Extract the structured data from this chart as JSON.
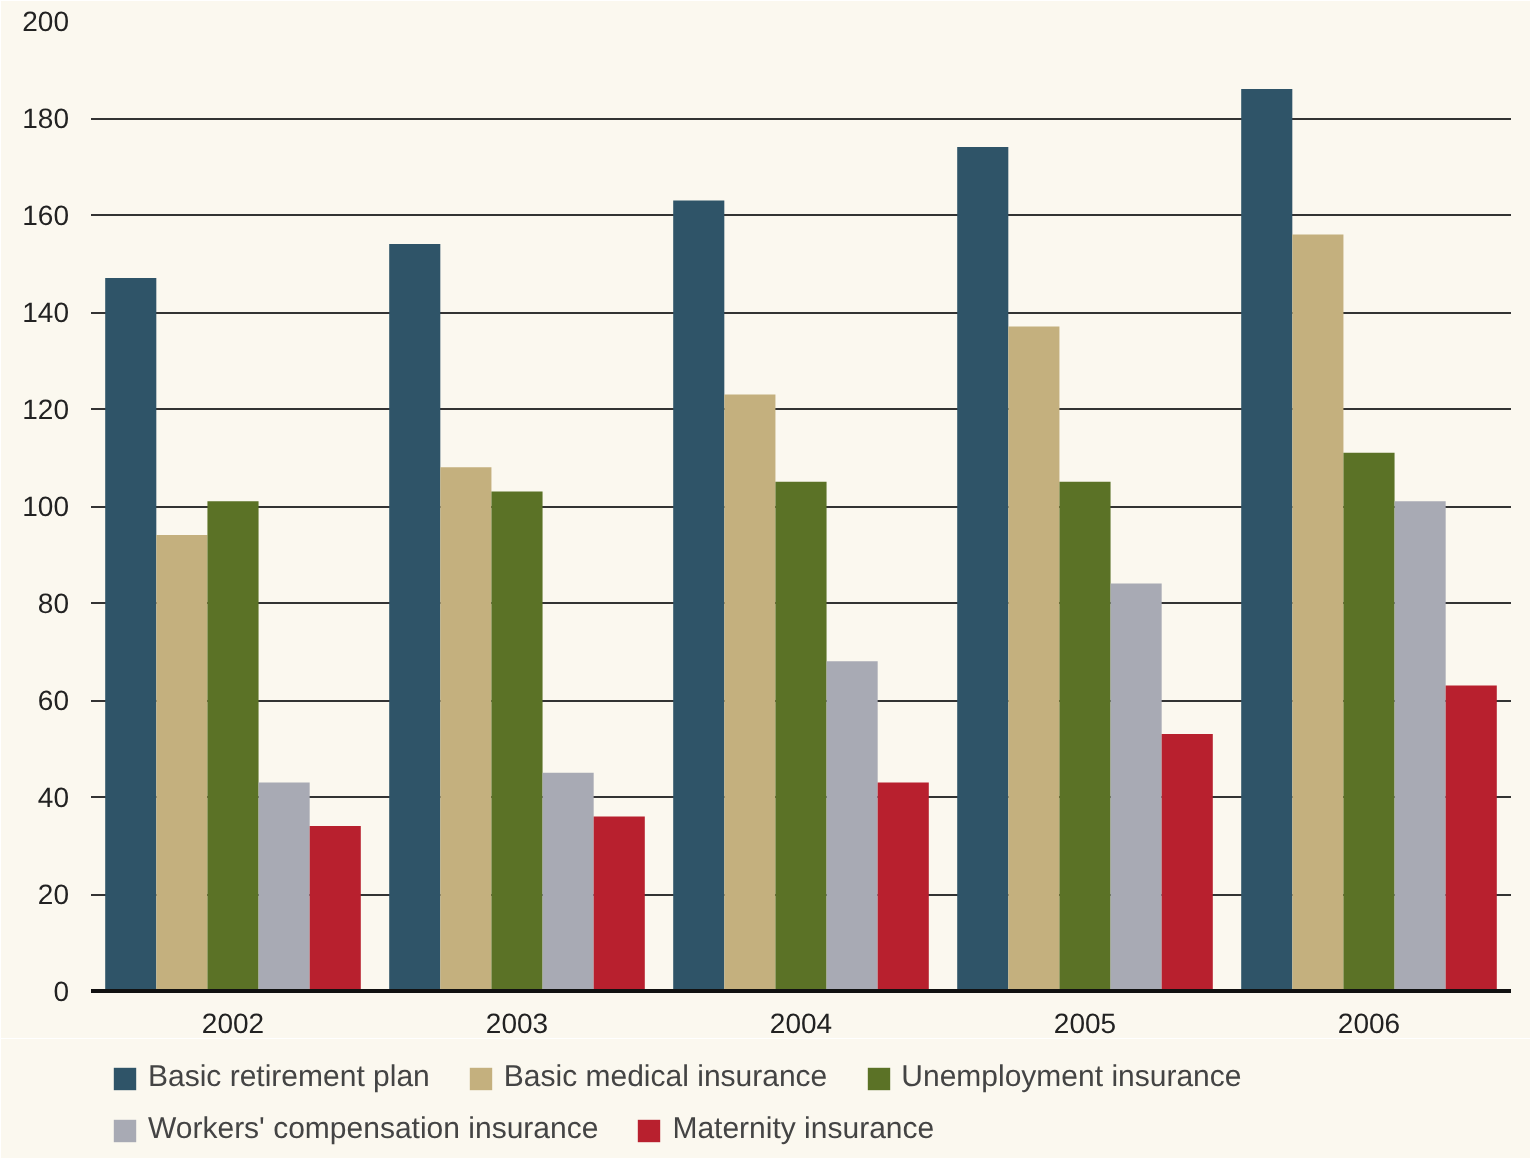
{
  "chart_data": {
    "type": "bar",
    "categories": [
      "2002",
      "2003",
      "2004",
      "2005",
      "2006"
    ],
    "series": [
      {
        "name": "Basic retirement plan",
        "color": "#2f5468",
        "values": [
          147,
          154,
          163,
          174,
          186
        ]
      },
      {
        "name": "Basic medical insurance",
        "color": "#c4b07e",
        "values": [
          94,
          108,
          123,
          137,
          156
        ]
      },
      {
        "name": "Unemployment insurance",
        "color": "#5b7226",
        "values": [
          101,
          103,
          105,
          105,
          111
        ]
      },
      {
        "name": "Workers' compensation insurance",
        "color": "#a8aab4",
        "values": [
          43,
          45,
          68,
          84,
          101
        ]
      },
      {
        "name": "Maternity insurance",
        "color": "#b8202e",
        "values": [
          34,
          36,
          43,
          53,
          63
        ]
      }
    ],
    "ylim": [
      0,
      200
    ],
    "yticks": [
      0,
      20,
      40,
      60,
      80,
      100,
      120,
      140,
      160,
      180,
      200
    ],
    "grid": "y",
    "legend": "bottom"
  }
}
